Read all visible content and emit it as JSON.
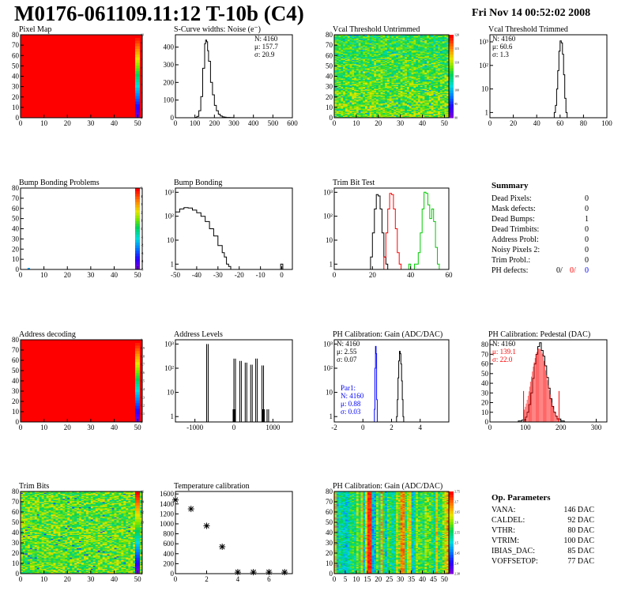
{
  "page": {
    "title": "M0176-061109.11:12 T-10b (C4)",
    "date": "Fri Nov 14 00:52:02 2008"
  },
  "colors": {
    "red": "#ff0000",
    "blue": "#0000ff",
    "green": "#00cc00",
    "black": "#000000"
  },
  "chart_data": [
    {
      "id": "pixel-map",
      "type": "heatmap",
      "title": "Pixel Map",
      "xlim": [
        0,
        52
      ],
      "ylim": [
        0,
        80
      ],
      "xticks": [
        0,
        10,
        20,
        30,
        40,
        50
      ],
      "yticks": [
        0,
        10,
        20,
        30,
        40,
        50,
        60,
        70,
        80
      ],
      "fill": "uniform",
      "value": 10,
      "colorbar": {
        "ticks": [
          "0",
          "1",
          "2",
          "3",
          "4",
          "5",
          "6",
          "7",
          "8",
          "9",
          "10"
        ]
      }
    },
    {
      "id": "scurve-noise",
      "type": "line",
      "title": "S-Curve widths: Noise (e⁻)",
      "xlim": [
        0,
        600
      ],
      "ylim": [
        0,
        470
      ],
      "xticks": [
        0,
        100,
        200,
        300,
        400,
        500,
        600
      ],
      "yticks": [
        0,
        100,
        200,
        300,
        400
      ],
      "log": false,
      "stats": {
        "N": "N: 4160",
        "mean": "μ: 157.7",
        "sigma": "σ: 20.9"
      },
      "series": [
        {
          "color": "#000000",
          "step": true,
          "x": [
            80,
            100,
            110,
            120,
            130,
            140,
            150,
            155,
            160,
            165,
            170,
            180,
            190,
            200,
            210,
            220,
            230,
            240,
            250,
            260,
            280,
            300,
            320
          ],
          "y": [
            0,
            2,
            8,
            40,
            120,
            280,
            420,
            440,
            430,
            380,
            320,
            200,
            130,
            70,
            40,
            20,
            10,
            5,
            3,
            2,
            1,
            0,
            0
          ]
        }
      ]
    },
    {
      "id": "vcal-untrimmed",
      "type": "heatmap",
      "title": "Vcal Threshold Untrimmed",
      "xlim": [
        0,
        52
      ],
      "ylim": [
        0,
        80
      ],
      "xticks": [
        0,
        10,
        20,
        30,
        40,
        50
      ],
      "yticks": [
        0,
        10,
        20,
        30,
        40,
        50,
        60,
        70,
        80
      ],
      "fill": "noise-cool-top",
      "colorbar": {
        "ticks": [
          "90",
          "95",
          "100",
          "105",
          "110",
          "115",
          "120"
        ]
      }
    },
    {
      "id": "vcal-trimmed",
      "type": "line",
      "title": "Vcal Threshold Trimmed",
      "xlim": [
        0,
        100
      ],
      "ylim": [
        0.6,
        2000
      ],
      "xticks": [
        0,
        20,
        40,
        60,
        80,
        100
      ],
      "log": true,
      "yticks": [
        1,
        10,
        100,
        1000
      ],
      "yticklabels": [
        "1",
        "10",
        "10²",
        "10³"
      ],
      "stats": {
        "N": "N: 4160",
        "mean": "μ: 60.6",
        "sigma": "σ:  1.3"
      },
      "series": [
        {
          "color": "#000000",
          "step": true,
          "x": [
            54,
            55,
            56,
            57,
            58,
            59,
            60,
            61,
            62,
            63,
            64,
            65,
            66
          ],
          "y": [
            0.6,
            1,
            2,
            10,
            60,
            400,
            1100,
            900,
            300,
            40,
            4,
            1,
            0.6
          ]
        }
      ]
    },
    {
      "id": "bump-bonding-problems",
      "type": "heatmap",
      "title": "Bump Bonding Problems",
      "xlim": [
        0,
        52
      ],
      "ylim": [
        0,
        80
      ],
      "xticks": [
        0,
        10,
        20,
        30,
        40,
        50
      ],
      "yticks": [
        0,
        10,
        20,
        30,
        40,
        50,
        60,
        70,
        80
      ],
      "fill": "empty",
      "marks": [
        {
          "x": 3,
          "y": 0
        }
      ],
      "colorbar": {
        "ticks": [
          "-5",
          "-4",
          "-3",
          "-2",
          "-1",
          "0",
          "1",
          "2",
          "3",
          "4",
          "5"
        ]
      }
    },
    {
      "id": "bump-bonding",
      "type": "line",
      "title": "Bump Bonding",
      "xlim": [
        -50,
        5
      ],
      "ylim": [
        0.6,
        1500
      ],
      "xticks": [
        -50,
        -40,
        -30,
        -20,
        -10,
        0
      ],
      "log": true,
      "yticks": [
        1,
        10,
        100,
        1000
      ],
      "yticklabels": [
        "1",
        "10",
        "10²",
        "10³"
      ],
      "series": [
        {
          "color": "#000000",
          "step": true,
          "x": [
            -50,
            -48,
            -46,
            -44,
            -42,
            -40,
            -38,
            -36,
            -34,
            -32,
            -30,
            -28,
            -27,
            -26,
            -25,
            -24,
            -1,
            -0.5,
            0,
            0.5
          ],
          "y": [
            150,
            200,
            230,
            220,
            180,
            140,
            100,
            60,
            30,
            15,
            6,
            3,
            2,
            1,
            0.8,
            0.6,
            0.6,
            1,
            1,
            0.6
          ]
        }
      ]
    },
    {
      "id": "trim-bit-test",
      "type": "line",
      "title": "Trim Bit Test",
      "xlim": [
        0,
        60
      ],
      "ylim": [
        0.6,
        1500
      ],
      "xticks": [
        0,
        20,
        40,
        60
      ],
      "log": true,
      "yticks": [
        1,
        10,
        100,
        1000
      ],
      "yticklabels": [
        "1",
        "10",
        "10²",
        "10³"
      ],
      "series": [
        {
          "color": "#000000",
          "step": true,
          "x": [
            18,
            19,
            20,
            21,
            22,
            23,
            24,
            25,
            26,
            27,
            28
          ],
          "y": [
            0.6,
            2,
            20,
            200,
            800,
            700,
            200,
            20,
            2,
            1,
            0.6
          ]
        },
        {
          "color": "#ff0000",
          "step": true,
          "x": [
            25,
            26,
            27,
            28,
            29,
            30,
            31,
            32,
            33,
            34,
            35
          ],
          "y": [
            0.6,
            2,
            20,
            200,
            900,
            800,
            200,
            30,
            3,
            1,
            0.6
          ]
        },
        {
          "color": "#00cc00",
          "step": true,
          "x": [
            0,
            38,
            39,
            40,
            41,
            42,
            43,
            44,
            45,
            46,
            47,
            48,
            49,
            50,
            51,
            52,
            53,
            54,
            55
          ],
          "y": [
            0.6,
            0.6,
            1,
            0.6,
            0.6,
            1,
            1,
            3,
            20,
            200,
            1000,
            900,
            300,
            80,
            200,
            60,
            5,
            1,
            0.6
          ]
        }
      ]
    },
    {
      "id": "address-decoding",
      "type": "heatmap",
      "title": "Address decoding",
      "xlim": [
        0,
        52
      ],
      "ylim": [
        0,
        80
      ],
      "xticks": [
        0,
        10,
        20,
        30,
        40,
        50
      ],
      "yticks": [
        0,
        10,
        20,
        30,
        40,
        50,
        60,
        70,
        80
      ],
      "fill": "uniform",
      "value": 1,
      "colorbar": {
        "ticks": [
          "0",
          "0.1",
          "0.2",
          "0.3",
          "0.4",
          "0.5",
          "0.6",
          "0.7",
          "0.8",
          "0.9",
          "1"
        ]
      }
    },
    {
      "id": "address-levels",
      "type": "bar",
      "title": "Address Levels",
      "xlim": [
        -1500,
        1500
      ],
      "ylim": [
        0.6,
        1500
      ],
      "xticks": [
        -1000,
        0,
        1000
      ],
      "log": true,
      "yticks": [
        1,
        10,
        100,
        1000
      ],
      "yticklabels": [
        "1",
        "10",
        "10²",
        "10³"
      ],
      "spikes": [
        {
          "x": -700,
          "y": 1000
        },
        {
          "x": -20,
          "y": 2
        },
        {
          "x": 0,
          "y": 250
        },
        {
          "x": 150,
          "y": 200
        },
        {
          "x": 290,
          "y": 170
        },
        {
          "x": 430,
          "y": 140
        },
        {
          "x": 560,
          "y": 250
        },
        {
          "x": 720,
          "y": 130
        },
        {
          "x": 740,
          "y": 2
        },
        {
          "x": 850,
          "y": 2
        }
      ]
    },
    {
      "id": "ph-gain",
      "type": "line",
      "title": "PH Calibration: Gain (ADC/DAC)",
      "xlim": [
        -2,
        6
      ],
      "ylim": [
        0.6,
        1500
      ],
      "xticks": [
        -2,
        0,
        2,
        4
      ],
      "log": true,
      "yticks": [
        1,
        10,
        100,
        1000
      ],
      "yticklabels": [
        "1",
        "10",
        "10²",
        "10³"
      ],
      "stats": {
        "N": "N: 4160",
        "mean": "μ: 2.55",
        "sigma": "σ: 0.07"
      },
      "stats2": {
        "label": "Par1:",
        "N": "N: 4160",
        "mean": "μ: 0.88",
        "sigma": "σ: 0.03"
      },
      "series": [
        {
          "color": "#0000ff",
          "step": true,
          "x": [
            -2,
            0.76,
            0.8,
            0.84,
            0.88,
            0.92,
            0.96,
            1.0,
            6
          ],
          "y": [
            0.6,
            0.6,
            2,
            100,
            800,
            400,
            5,
            0.6,
            0.6
          ]
        },
        {
          "color": "#000000",
          "step": true,
          "x": [
            2.3,
            2.35,
            2.4,
            2.45,
            2.5,
            2.55,
            2.6,
            2.65,
            2.7,
            2.75,
            2.8,
            2.85
          ],
          "y": [
            0.6,
            1,
            5,
            40,
            200,
            500,
            400,
            150,
            30,
            5,
            1,
            0.6
          ]
        }
      ]
    },
    {
      "id": "ph-pedestal",
      "type": "line",
      "title": "PH Calibration: Pedestal (DAC)",
      "xlim": [
        0,
        330
      ],
      "ylim": [
        0,
        85
      ],
      "xticks": [
        0,
        100,
        200,
        300
      ],
      "yticks": [
        0,
        10,
        20,
        30,
        40,
        50,
        60,
        70,
        80
      ],
      "log": false,
      "stats": {
        "N": "N: 4160",
        "mean": "μ: 139.1",
        "sigma": "σ: 22.0"
      },
      "fit": {
        "color": "#ff0000",
        "range": [
          95,
          195
        ],
        "mean": 139.1,
        "sigma": 22.0,
        "peak": 76
      },
      "series": [
        {
          "color": "#000000",
          "step": true,
          "x": [
            70,
            80,
            90,
            100,
            105,
            110,
            115,
            120,
            125,
            130,
            135,
            140,
            145,
            150,
            155,
            160,
            165,
            170,
            175,
            180,
            185,
            190,
            200,
            210,
            220
          ],
          "y": [
            0,
            1,
            2,
            5,
            10,
            18,
            30,
            45,
            60,
            70,
            78,
            82,
            74,
            68,
            58,
            46,
            35,
            24,
            16,
            10,
            6,
            3,
            1,
            0,
            0
          ]
        }
      ]
    },
    {
      "id": "trim-bits",
      "type": "heatmap",
      "title": "Trim Bits",
      "xlim": [
        0,
        52
      ],
      "ylim": [
        0,
        80
      ],
      "xticks": [
        0,
        10,
        20,
        30,
        40,
        50
      ],
      "yticks": [
        0,
        10,
        20,
        30,
        40,
        50,
        60,
        70,
        80
      ],
      "fill": "noise-green",
      "colorbar": {
        "ticks": [
          "0",
          "2",
          "4",
          "6",
          "8",
          "10",
          "12",
          "14",
          "16"
        ]
      }
    },
    {
      "id": "temperature-calibration",
      "type": "scatter",
      "title": "Temperature calibration",
      "xlim": [
        0,
        7.5
      ],
      "ylim": [
        0,
        1650
      ],
      "xticks": [
        0,
        2,
        4,
        6
      ],
      "yticks": [
        0,
        200,
        400,
        600,
        800,
        1000,
        1200,
        1400,
        1600
      ],
      "points": [
        {
          "x": 0,
          "y": 1480
        },
        {
          "x": 1,
          "y": 1300
        },
        {
          "x": 2,
          "y": 960
        },
        {
          "x": 3,
          "y": 540
        },
        {
          "x": 4,
          "y": 30
        },
        {
          "x": 5,
          "y": 30
        },
        {
          "x": 6,
          "y": 30
        },
        {
          "x": 7,
          "y": 30
        }
      ]
    },
    {
      "id": "ph-gain-map",
      "type": "heatmap",
      "title": "PH Calibration: Gain (ADC/DAC)",
      "xlim": [
        0,
        52
      ],
      "ylim": [
        0,
        80
      ],
      "xticks": [
        0,
        5,
        10,
        15,
        20,
        25,
        30,
        35,
        40,
        45,
        50
      ],
      "yticks": [
        0,
        10,
        20,
        30,
        40,
        50,
        60,
        70,
        80
      ],
      "fill": "columns",
      "colorbar": {
        "ticks": [
          "2.38",
          "2.4",
          "2.45",
          "2.5",
          "2.55",
          "2.6",
          "2.65",
          "2.7",
          "2.75"
        ]
      }
    }
  ],
  "summary": {
    "title": "Summary",
    "rows": [
      {
        "label": "Dead Pixels:",
        "value": "0"
      },
      {
        "label": "Mask defects:",
        "value": "0"
      },
      {
        "label": "Dead Bumps:",
        "value": "1"
      },
      {
        "label": "Dead Trimbits:",
        "value": "0"
      },
      {
        "label": "Address Probl:",
        "value": "0"
      },
      {
        "label": "Noisy Pixels 2:",
        "value": "0"
      },
      {
        "label": "Trim Probl.:",
        "value": "0"
      }
    ],
    "ph_defects": {
      "label": "PH defects:",
      "v1": "0/",
      "v2": "0/",
      "v3": "0"
    }
  },
  "op_params": {
    "title": "Op. Parameters",
    "rows": [
      {
        "label": "VANA:",
        "value": "146 DAC"
      },
      {
        "label": "CALDEL:",
        "value": "92 DAC"
      },
      {
        "label": "VTHR:",
        "value": "80 DAC"
      },
      {
        "label": "VTRIM:",
        "value": "100 DAC"
      },
      {
        "label": "IBIAS_DAC:",
        "value": "85 DAC"
      },
      {
        "label": "VOFFSETOP:",
        "value": "77 DAC"
      }
    ]
  }
}
